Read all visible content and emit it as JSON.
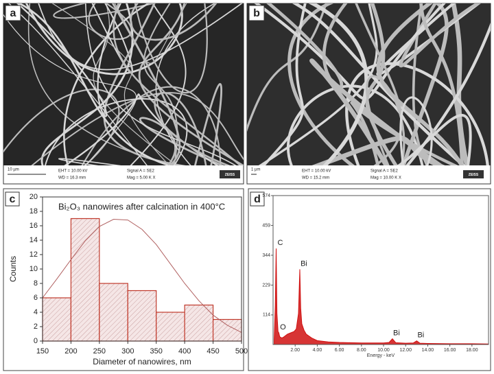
{
  "sem_panels": [
    {
      "label": "a",
      "scale_bar": "10 µm",
      "eht": "EHT = 10.00 kV",
      "wd": "WD = 16.3 mm",
      "signal": "Signal A = SE2",
      "mag": "Mag = 5.00 K X",
      "logo": "ZEISS"
    },
    {
      "label": "b",
      "scale_bar": "1 µm",
      "eht": "EHT = 10.00 kV",
      "wd": "WD = 15.2 mm",
      "signal": "Signal A = SE2",
      "mag": "Mag = 10.00 K X",
      "logo": "ZEISS"
    }
  ],
  "chart_data": [
    {
      "type": "histogram",
      "panel_label": "c",
      "title": "Bi₂O₃ nanowires after calcination in 400°C",
      "x_label": "Diameter of nanowires, nm",
      "y_label": "Counts",
      "bins": [
        150,
        200,
        250,
        300,
        350,
        400,
        450,
        500
      ],
      "counts": [
        6,
        17,
        8,
        7,
        4,
        5,
        3
      ],
      "color": "#c0392b",
      "fit": {
        "color": "#b06060",
        "x": [
          150,
          175,
          200,
          225,
          250,
          275,
          300,
          325,
          350,
          375,
          400,
          425,
          450,
          475,
          500
        ],
        "values": [
          6,
          8.6,
          11.3,
          13.9,
          15.9,
          16.9,
          16.8,
          15.5,
          13.4,
          10.7,
          8.0,
          5.6,
          3.6,
          2.2,
          1.2
        ]
      },
      "xlim": [
        150,
        500
      ],
      "xticks": [
        150,
        200,
        250,
        300,
        350,
        400,
        450,
        500
      ],
      "ylim": [
        0,
        20
      ],
      "yticks": [
        0,
        2,
        4,
        6,
        8,
        10,
        12,
        14,
        16,
        18,
        20
      ]
    },
    {
      "type": "spectrum",
      "panel_label": "d",
      "x_label": "Energy - keV",
      "color": "#d01010",
      "x": [
        0.1,
        0.2,
        0.28,
        0.35,
        0.45,
        0.52,
        0.6,
        0.8,
        1.0,
        1.3,
        1.6,
        1.9,
        2.1,
        2.3,
        2.42,
        2.5,
        2.6,
        2.8,
        3.0,
        3.5,
        4.0,
        5,
        6,
        7,
        8,
        9,
        10,
        10.5,
        10.8,
        11.1,
        12,
        12.7,
        13.0,
        13.3,
        14,
        16,
        18,
        19.5
      ],
      "values": [
        20,
        150,
        370,
        120,
        50,
        45,
        30,
        25,
        30,
        40,
        45,
        50,
        60,
        120,
        290,
        140,
        80,
        55,
        40,
        25,
        15,
        10,
        8,
        7,
        6,
        6,
        6,
        8,
        22,
        7,
        5,
        6,
        14,
        5,
        4,
        3,
        3,
        2
      ],
      "annotations": [
        {
          "text": "C",
          "x": 0.28,
          "y": 370
        },
        {
          "text": "O",
          "x": 0.52,
          "y": 45
        },
        {
          "text": "Bi",
          "x": 2.42,
          "y": 290
        },
        {
          "text": "Bi",
          "x": 10.8,
          "y": 22
        },
        {
          "text": "Bi",
          "x": 13.0,
          "y": 14
        }
      ],
      "xlim": [
        0,
        19.5
      ],
      "xticks": [
        {
          "value": 2,
          "label": "2.00"
        },
        {
          "value": 4,
          "label": "4.00"
        },
        {
          "value": 6,
          "label": "6.00"
        },
        {
          "value": 8,
          "label": "8.00"
        },
        {
          "value": 10,
          "label": "10.00"
        },
        {
          "value": 12,
          "label": "12.00"
        },
        {
          "value": 14,
          "label": "14.00"
        },
        {
          "value": 16,
          "label": "16.00"
        },
        {
          "value": 18,
          "label": "18.00"
        }
      ],
      "ylim": [
        0,
        574
      ],
      "yticks": [
        114,
        229,
        344,
        459,
        574
      ]
    }
  ]
}
